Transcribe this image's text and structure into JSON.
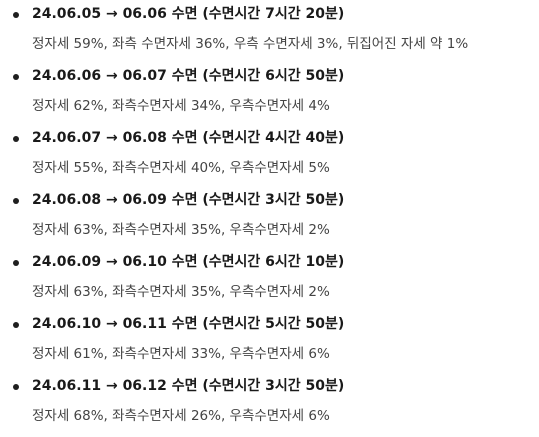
{
  "entries": [
    {
      "title": "24.06.05 → 06.06 수면 (수면시간 7시간 20분)",
      "detail": "정자세 59%, 좌측 수면자세 36%, 우측 수면자세 3%, 뒤집어진 자세 약 1%"
    },
    {
      "title": "24.06.06 → 06.07 수면 (수면시간 6시간 50분)",
      "detail": "정자세 62%, 좌측수면자세 34%, 우측수면자세 4%"
    },
    {
      "title": "24.06.07 → 06.08 수면 (수면시간 4시간 40분)",
      "detail": "정자세 55%, 좌측수면자세 40%, 우측수면자세 5%"
    },
    {
      "title": "24.06.08 → 06.09 수면 (수면시간 3시간 50분)",
      "detail": "정자세 63%, 좌측수면자세 35%, 우측수면자세 2%"
    },
    {
      "title": "24.06.09 → 06.10 수면 (수면시간 6시간 10분)",
      "detail": "정자세 63%, 좌측수면자세 35%, 우측수면자세 2%"
    },
    {
      "title": "24.06.10 → 06.11 수면 (수면시간 5시간 50분)",
      "detail": "정자세 61%, 좌측수면자세 33%, 우측수면자세 6%"
    },
    {
      "title": "24.06.11 → 06.12 수면 (수면시간 3시간 50분)",
      "detail": "정자세 68%, 좌측수면자세 26%, 우측수면자세 6%"
    }
  ]
}
